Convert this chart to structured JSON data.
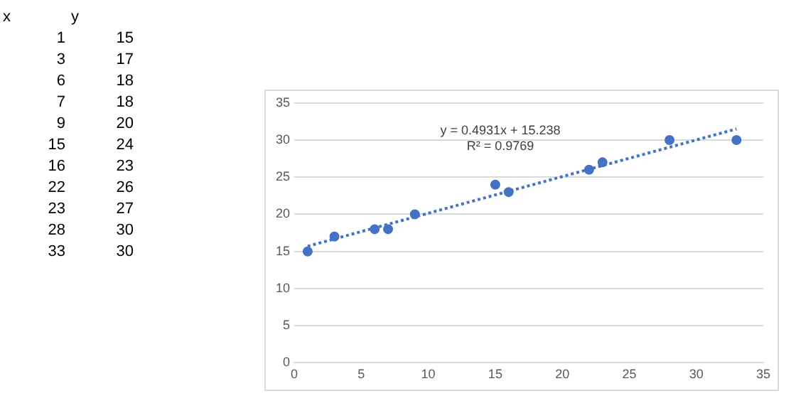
{
  "chart_data": {
    "type": "scatter",
    "x": [
      1,
      3,
      6,
      7,
      9,
      15,
      16,
      22,
      23,
      28,
      33
    ],
    "series": [
      {
        "color": "#4472c4",
        "marker": "circle",
        "values": [
          15,
          17,
          18,
          18,
          20,
          24,
          23,
          26,
          27,
          30,
          30
        ]
      },
      {
        "type": "line",
        "color": "#4472c4",
        "line_style": "dotted",
        "marker": "none",
        "x": [
          1,
          33
        ],
        "values": [
          15.7,
          31.5
        ]
      }
    ],
    "xlim": [
      0,
      35
    ],
    "xticks": [
      0,
      5,
      10,
      15,
      20,
      25,
      30,
      35
    ],
    "ylim": [
      0,
      35
    ],
    "yticks": [
      0,
      5,
      10,
      15,
      20,
      25,
      30,
      35
    ],
    "grid": "y",
    "annotations": [
      "y = 0.4931x + 15.238",
      "R² = 0.9769",
      "x",
      "y",
      "1",
      "15",
      "3",
      "17",
      "6",
      "18",
      "7",
      "18",
      "9",
      "20",
      "15",
      "24",
      "16",
      "23",
      "22",
      "26",
      "23",
      "27",
      "28",
      "30",
      "33",
      "30"
    ]
  }
}
